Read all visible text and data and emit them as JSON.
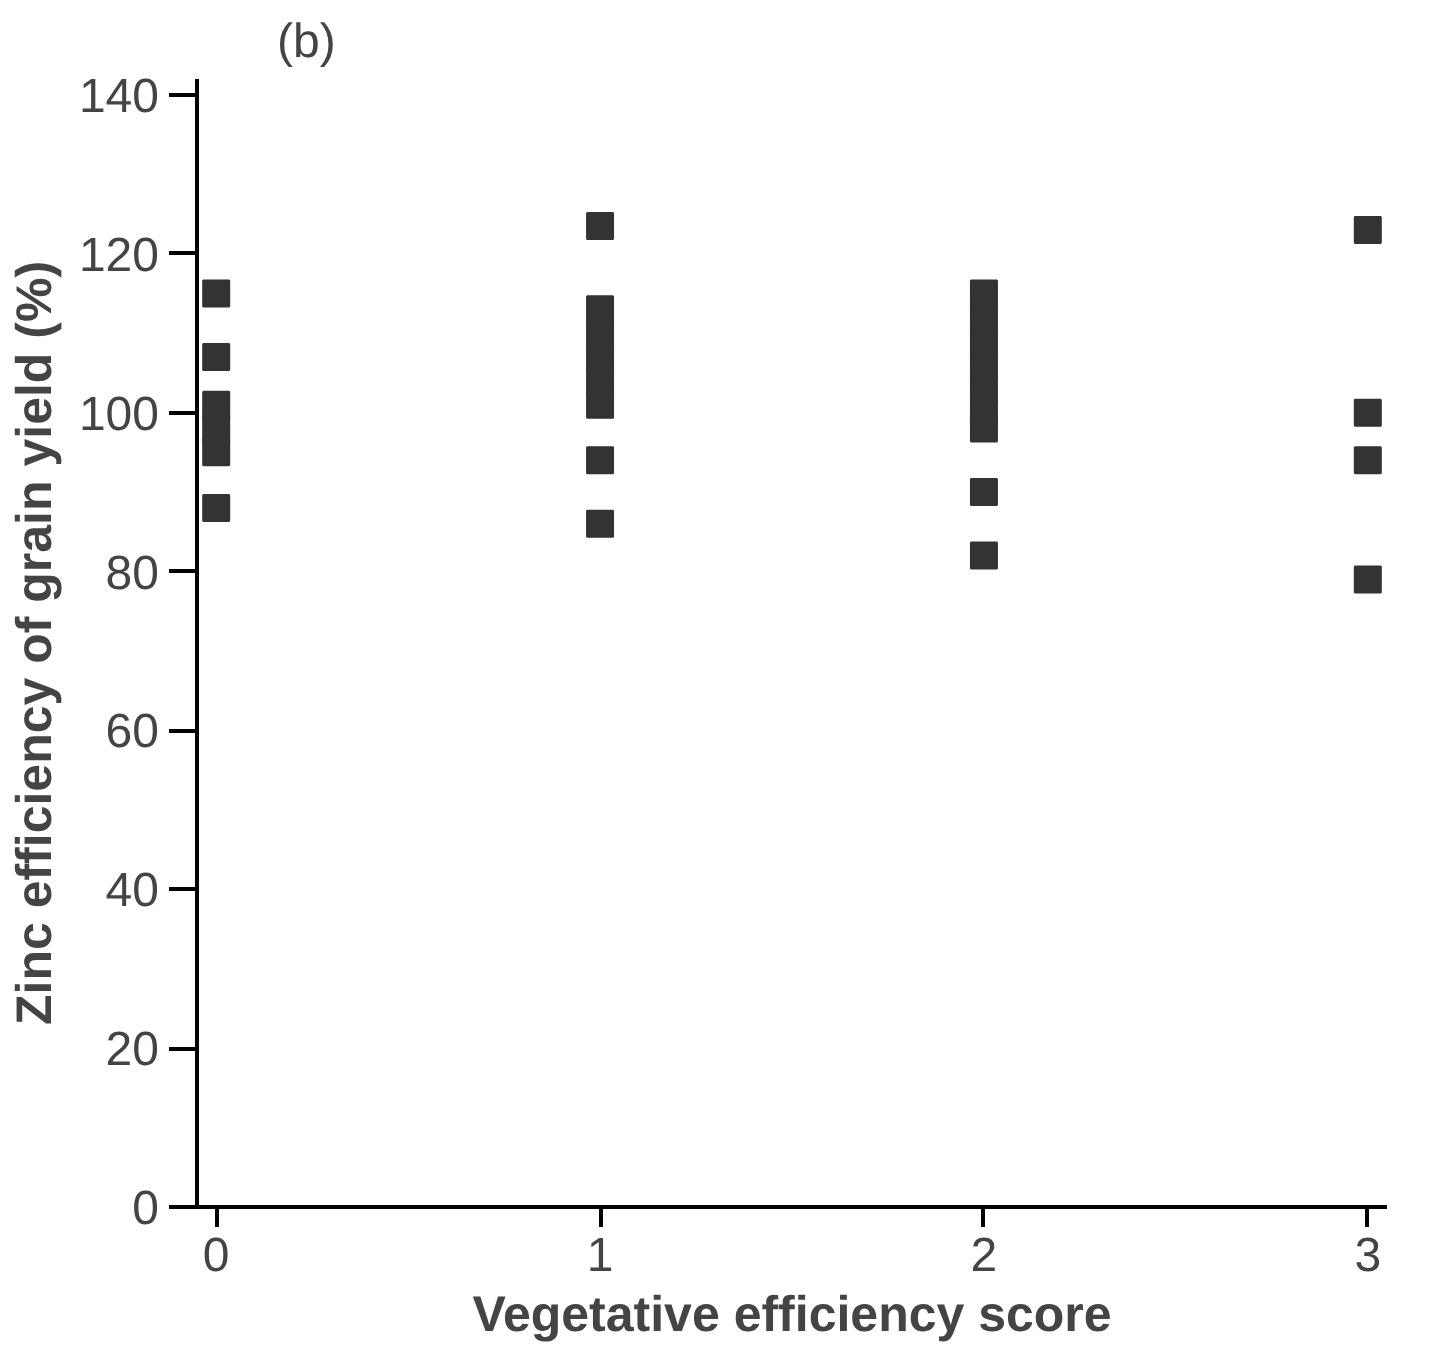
{
  "chart_data": {
    "type": "scatter",
    "title": "(b)",
    "xlabel": "Vegetative efficiency score",
    "ylabel": "Zinc efficiency of grain yield (%)",
    "series": [
      {
        "color": "#333333",
        "x": [
          0,
          0,
          0,
          0,
          0,
          0,
          1,
          1,
          1,
          1,
          1,
          1,
          1,
          1,
          2,
          2,
          2,
          2,
          2,
          2,
          2,
          2,
          2,
          3,
          3,
          3,
          3
        ],
        "values": [
          115,
          107,
          101,
          98,
          95,
          88,
          123.5,
          113,
          110,
          107,
          104,
          101,
          94,
          86,
          115,
          112,
          109,
          106,
          103,
          100,
          98,
          90,
          82,
          123,
          100,
          94,
          79
        ]
      }
    ],
    "xlim": [
      -0.05,
      3.05
    ],
    "ylim": [
      0,
      142
    ],
    "xticks": [
      0,
      1,
      2,
      3
    ],
    "yticks": [
      0,
      20,
      40,
      60,
      80,
      100,
      120,
      140
    ],
    "grid": false,
    "marker": "square"
  }
}
